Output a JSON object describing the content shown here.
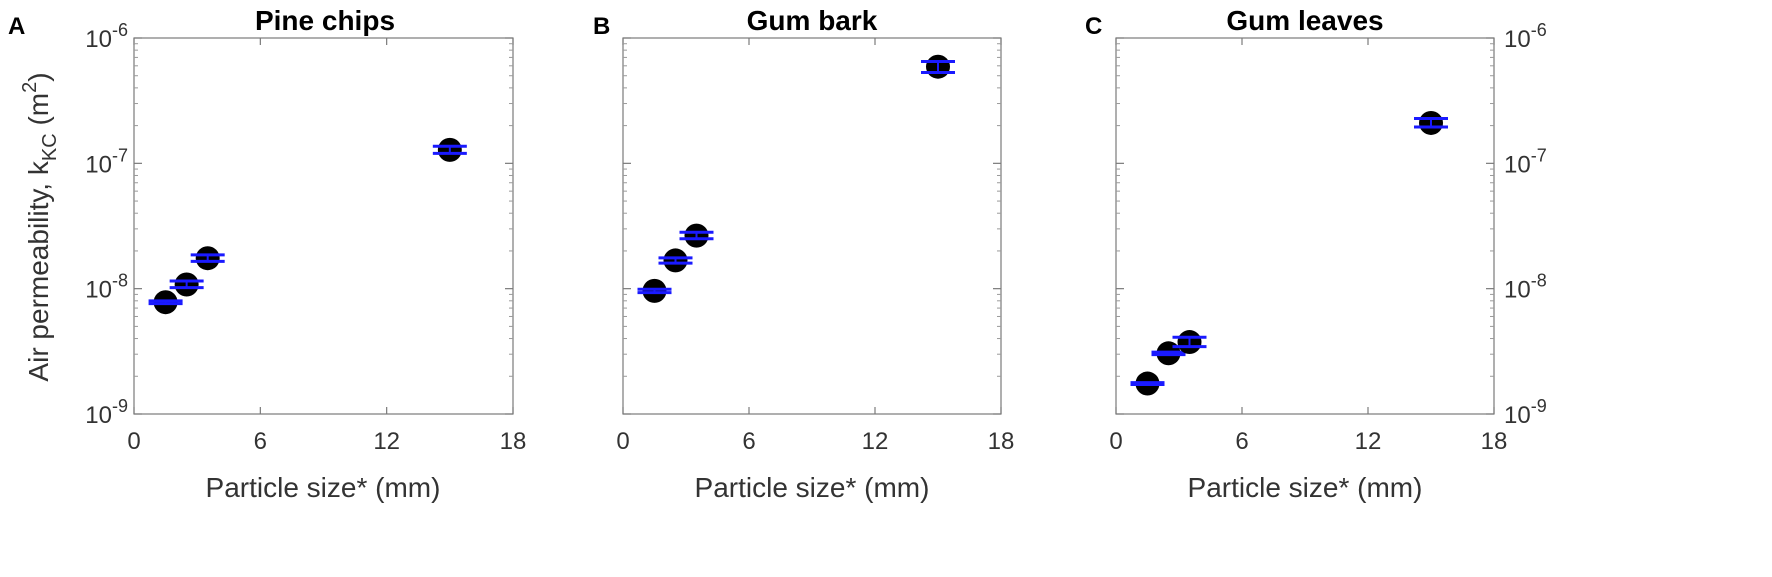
{
  "chart_data": [
    {
      "panel_letter": "A",
      "title": "Pine chips",
      "type": "scatter",
      "xlabel": "Particle size* (mm)",
      "ylabel": "Air permeability, k_KC (m^2)",
      "xlim": [
        0,
        18
      ],
      "ylim": [
        1e-09,
        1e-06
      ],
      "yscale": "log",
      "x_ticks": [
        "0",
        "6",
        "12",
        "18"
      ],
      "y_ticks": [
        "10^-9",
        "10^-8",
        "10^-7",
        "10^-6"
      ],
      "y_axis_side": "left",
      "grid": false,
      "marker_color": "#000000",
      "errorbar_color": "#1a1aff",
      "points": [
        {
          "x": 1.5,
          "y": 7.8e-09,
          "y_low": 7.6e-09,
          "y_high": 8e-09
        },
        {
          "x": 2.5,
          "y": 1.08e-08,
          "y_low": 1.02e-08,
          "y_high": 1.15e-08
        },
        {
          "x": 3.5,
          "y": 1.75e-08,
          "y_low": 1.65e-08,
          "y_high": 1.86e-08
        },
        {
          "x": 15.0,
          "y": 1.28e-07,
          "y_low": 1.2e-07,
          "y_high": 1.37e-07
        }
      ]
    },
    {
      "panel_letter": "B",
      "title": "Gum bark",
      "type": "scatter",
      "xlabel": "Particle size* (mm)",
      "ylabel": "",
      "xlim": [
        0,
        18
      ],
      "ylim": [
        1e-09,
        1e-06
      ],
      "yscale": "log",
      "x_ticks": [
        "0",
        "6",
        "12",
        "18"
      ],
      "y_ticks": [],
      "y_axis_side": "left",
      "grid": false,
      "marker_color": "#000000",
      "errorbar_color": "#1a1aff",
      "points": [
        {
          "x": 1.5,
          "y": 9.6e-09,
          "y_low": 9.3e-09,
          "y_high": 9.9e-09
        },
        {
          "x": 2.5,
          "y": 1.68e-08,
          "y_low": 1.6e-08,
          "y_high": 1.76e-08
        },
        {
          "x": 3.5,
          "y": 2.65e-08,
          "y_low": 2.5e-08,
          "y_high": 2.82e-08
        },
        {
          "x": 15.0,
          "y": 5.9e-07,
          "y_low": 5.3e-07,
          "y_high": 6.5e-07
        }
      ]
    },
    {
      "panel_letter": "C",
      "title": "Gum leaves",
      "type": "scatter",
      "xlabel": "Particle size* (mm)",
      "ylabel": "",
      "xlim": [
        0,
        18
      ],
      "ylim": [
        1e-09,
        1e-06
      ],
      "yscale": "log",
      "x_ticks": [
        "0",
        "6",
        "12",
        "18"
      ],
      "y_ticks": [
        "10^-9",
        "10^-8",
        "10^-7",
        "10^-6"
      ],
      "y_axis_side": "right",
      "grid": false,
      "marker_color": "#000000",
      "errorbar_color": "#1a1aff",
      "points": [
        {
          "x": 1.5,
          "y": 1.75e-09,
          "y_low": 1.72e-09,
          "y_high": 1.78e-09
        },
        {
          "x": 2.5,
          "y": 3.05e-09,
          "y_low": 2.98e-09,
          "y_high": 3.12e-09
        },
        {
          "x": 3.5,
          "y": 3.75e-09,
          "y_low": 3.45e-09,
          "y_high": 4.1e-09
        },
        {
          "x": 15.0,
          "y": 2.1e-07,
          "y_low": 1.95e-07,
          "y_high": 2.28e-07
        }
      ]
    }
  ]
}
